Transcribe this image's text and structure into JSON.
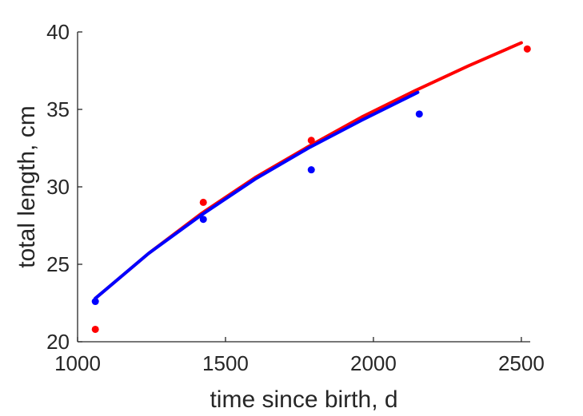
{
  "chart_data": {
    "type": "scatter",
    "title": "",
    "xlabel": "time since birth, d",
    "ylabel": "total length, cm",
    "xlim": [
      1000,
      2530
    ],
    "ylim": [
      20,
      40
    ],
    "xticks": [
      1000,
      1500,
      2000,
      2500
    ],
    "yticks": [
      20,
      25,
      30,
      35,
      40
    ],
    "grid": false,
    "series": [
      {
        "kind": "points",
        "color": "#ff0000",
        "x": [
          1060,
          1425,
          1790,
          2520
        ],
        "y": [
          20.8,
          29.0,
          33.0,
          38.9
        ]
      },
      {
        "kind": "points",
        "color": "#0000ff",
        "x": [
          1060,
          1425,
          1790,
          2155
        ],
        "y": [
          22.6,
          27.9,
          31.1,
          34.7
        ]
      },
      {
        "kind": "curve",
        "color": "#ff0000",
        "x": [
          1060,
          1240,
          1420,
          1600,
          1780,
          1960,
          2140,
          2320,
          2500
        ],
        "y": [
          22.8,
          25.7,
          28.3,
          30.6,
          32.6,
          34.5,
          36.2,
          37.8,
          39.3
        ]
      },
      {
        "kind": "curve",
        "color": "#0000ff",
        "x": [
          1060,
          1240,
          1420,
          1600,
          1780,
          1960,
          2150
        ],
        "y": [
          22.8,
          25.7,
          28.2,
          30.5,
          32.5,
          34.3,
          36.1
        ]
      }
    ]
  }
}
